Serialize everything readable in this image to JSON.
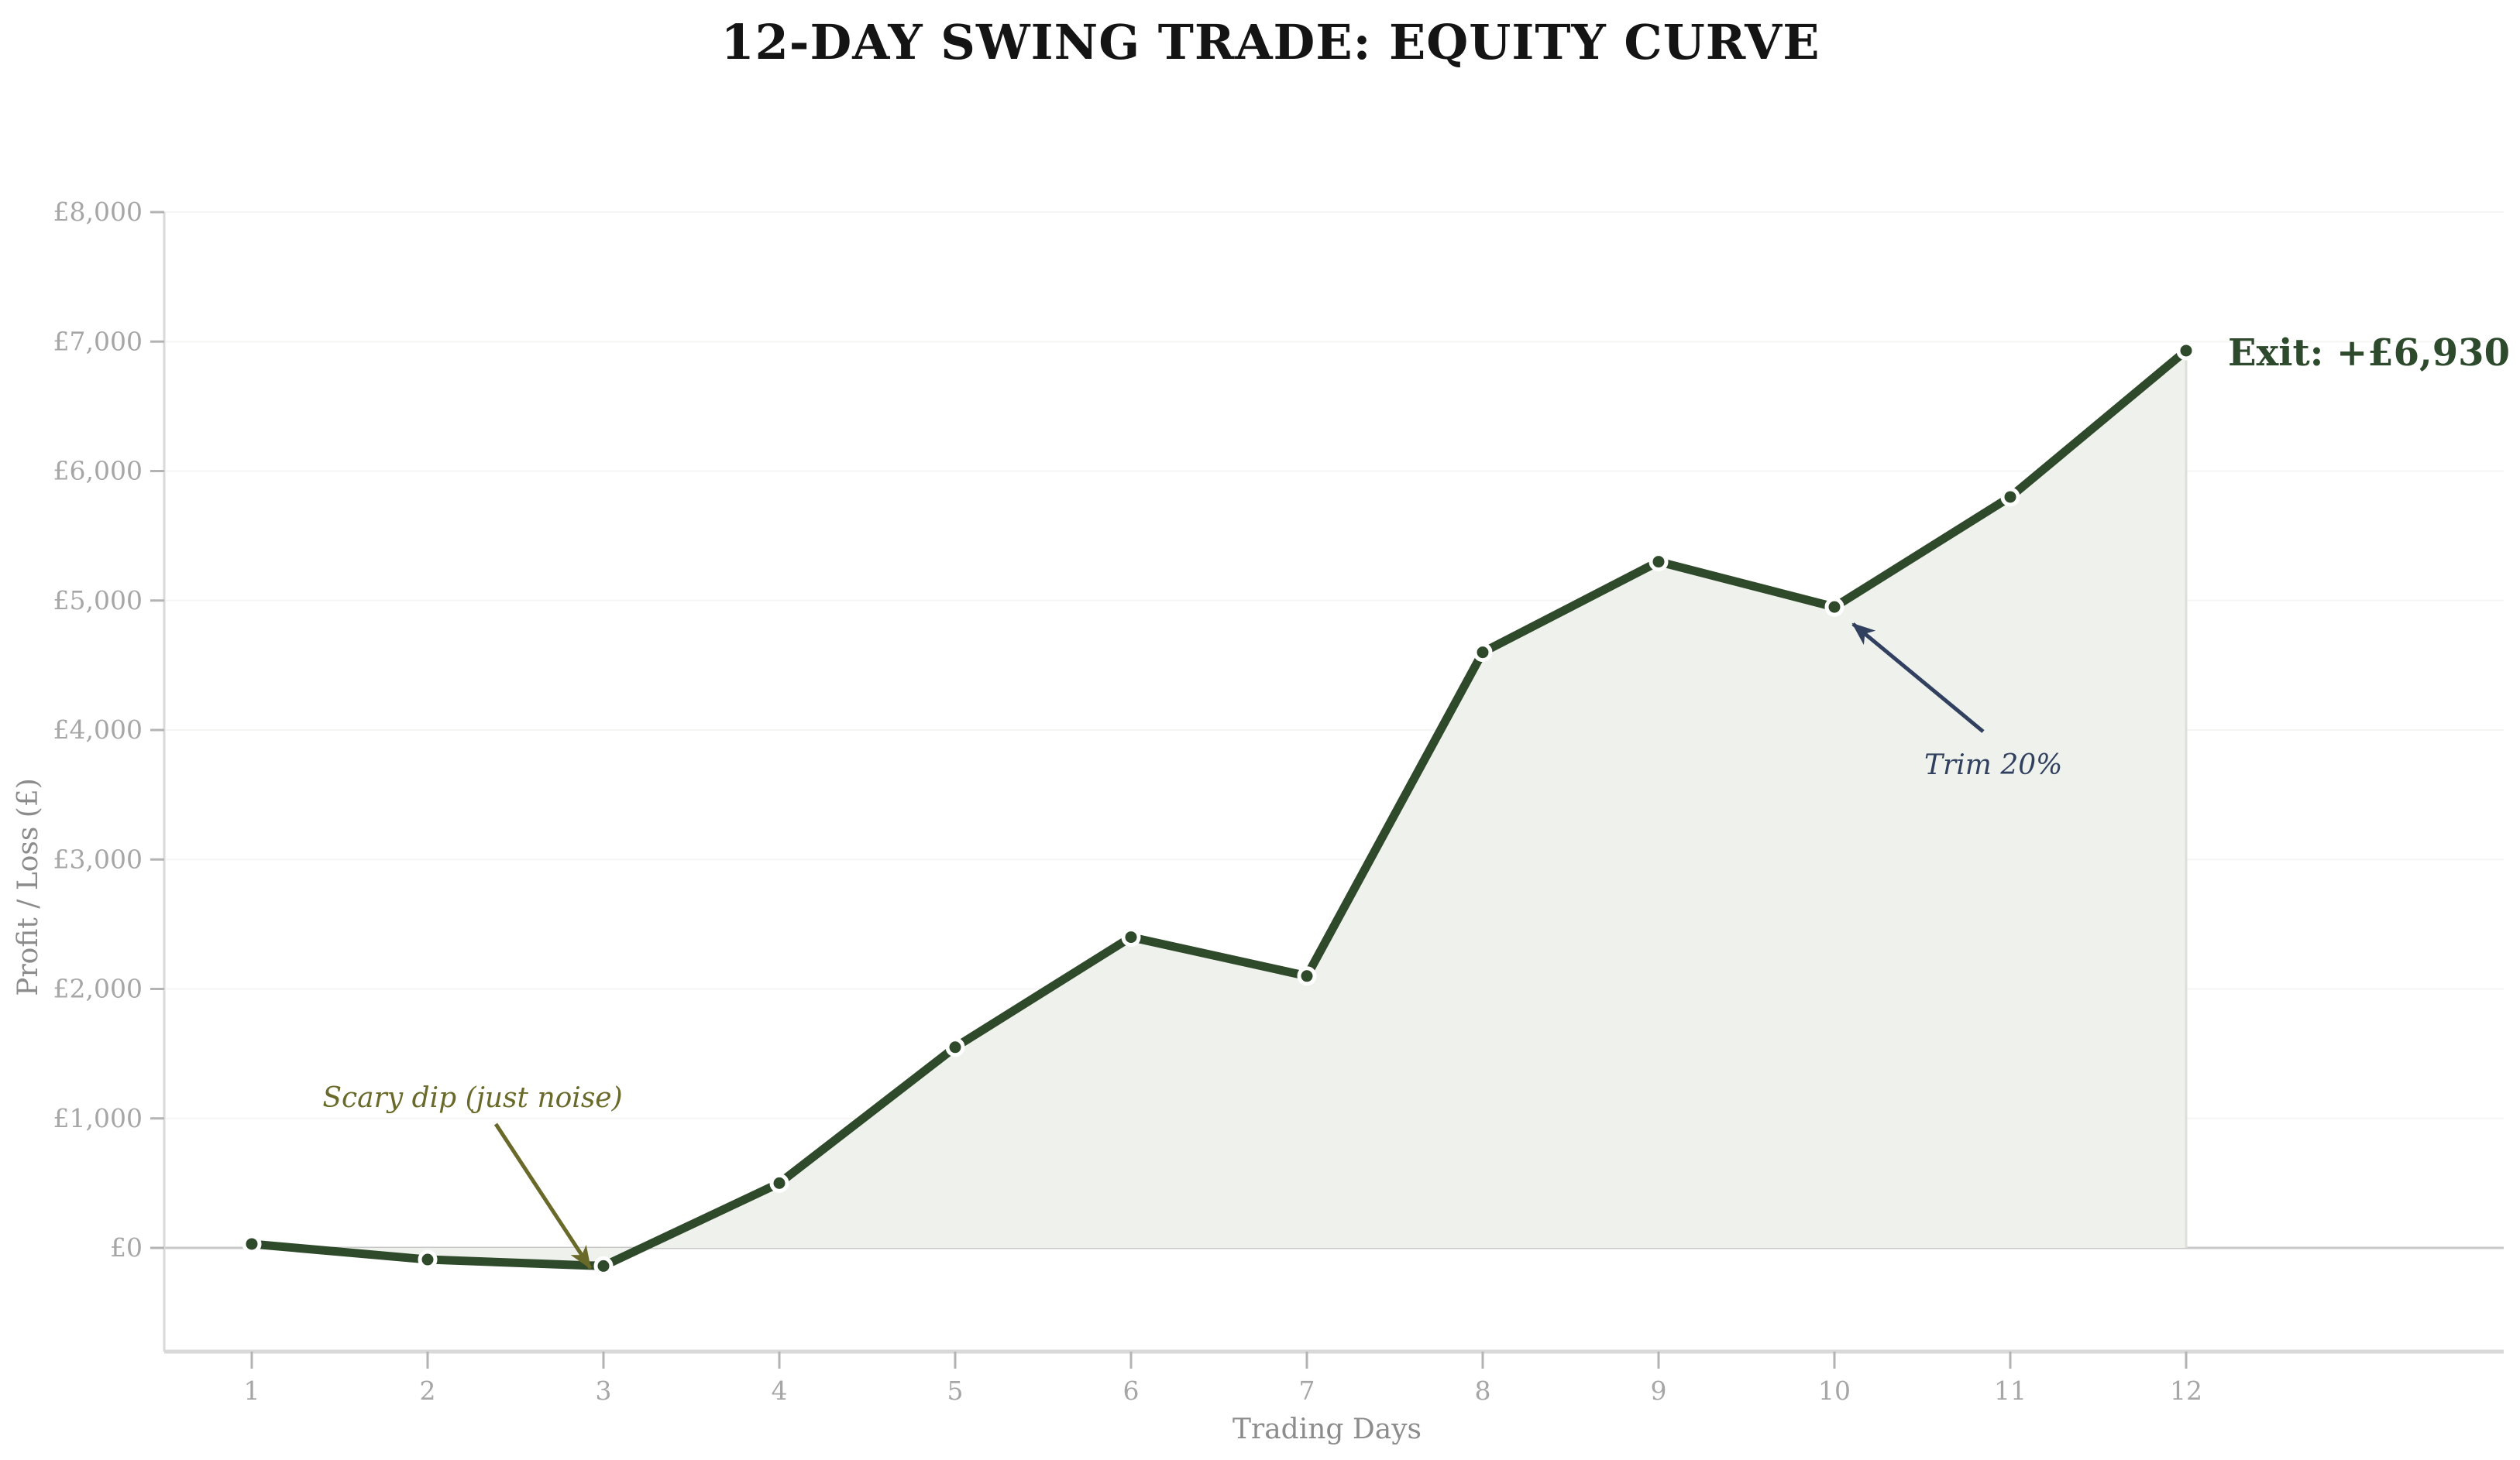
{
  "chart_data": {
    "type": "line",
    "title": "12-DAY SWING TRADE: EQUITY CURVE",
    "xlabel": "Trading Days",
    "ylabel": "Profit / Loss (£)",
    "series_name": "equity-curve",
    "x": [
      1,
      2,
      3,
      4,
      5,
      6,
      7,
      8,
      9,
      10,
      11,
      12
    ],
    "values": [
      30,
      -90,
      -140,
      500,
      1550,
      2400,
      2100,
      4600,
      5300,
      4950,
      5800,
      6930
    ],
    "x_tick_labels": [
      "1",
      "2",
      "3",
      "4",
      "5",
      "6",
      "7",
      "8",
      "9",
      "10",
      "11",
      "12"
    ],
    "y_ticks": [
      0,
      1000,
      2000,
      3000,
      4000,
      5000,
      6000,
      7000,
      8000
    ],
    "y_tick_labels": [
      "£0",
      "£1,000",
      "£2,000",
      "£3,000",
      "£4,000",
      "£5,000",
      "£6,000",
      "£7,000",
      "£8,000"
    ],
    "ylim": [
      -800,
      8000
    ],
    "grid": true,
    "area_fill": true,
    "legend": "none",
    "annotations": [
      {
        "id": "scary-dip",
        "text": "Scary dip (just noise)",
        "target_day": 3,
        "color": "#69692a",
        "style": "italic, arrow to point"
      },
      {
        "id": "trim",
        "text": "Trim 20%",
        "target_day": 10,
        "color": "#31405f",
        "style": "italic, arrow to point"
      },
      {
        "id": "exit",
        "text": "Exit: +£6,930",
        "target_day": 12,
        "color": "#2d4a2c",
        "style": "bold, beside final point"
      }
    ],
    "colors": {
      "line": "#2f4a2a",
      "marker_fill": "#2f4a2a",
      "marker_edge": "#ffffff",
      "area_fill": "#eef1ec",
      "area_right_edge": "#dde0da",
      "zero_line": "#c8c8c8",
      "axis_line": "#d9d9d9",
      "gridline": "#f5f5f4",
      "tick_label": "#a6a6a6",
      "axis_title": "#8c8c8c",
      "title": "#141414"
    }
  }
}
